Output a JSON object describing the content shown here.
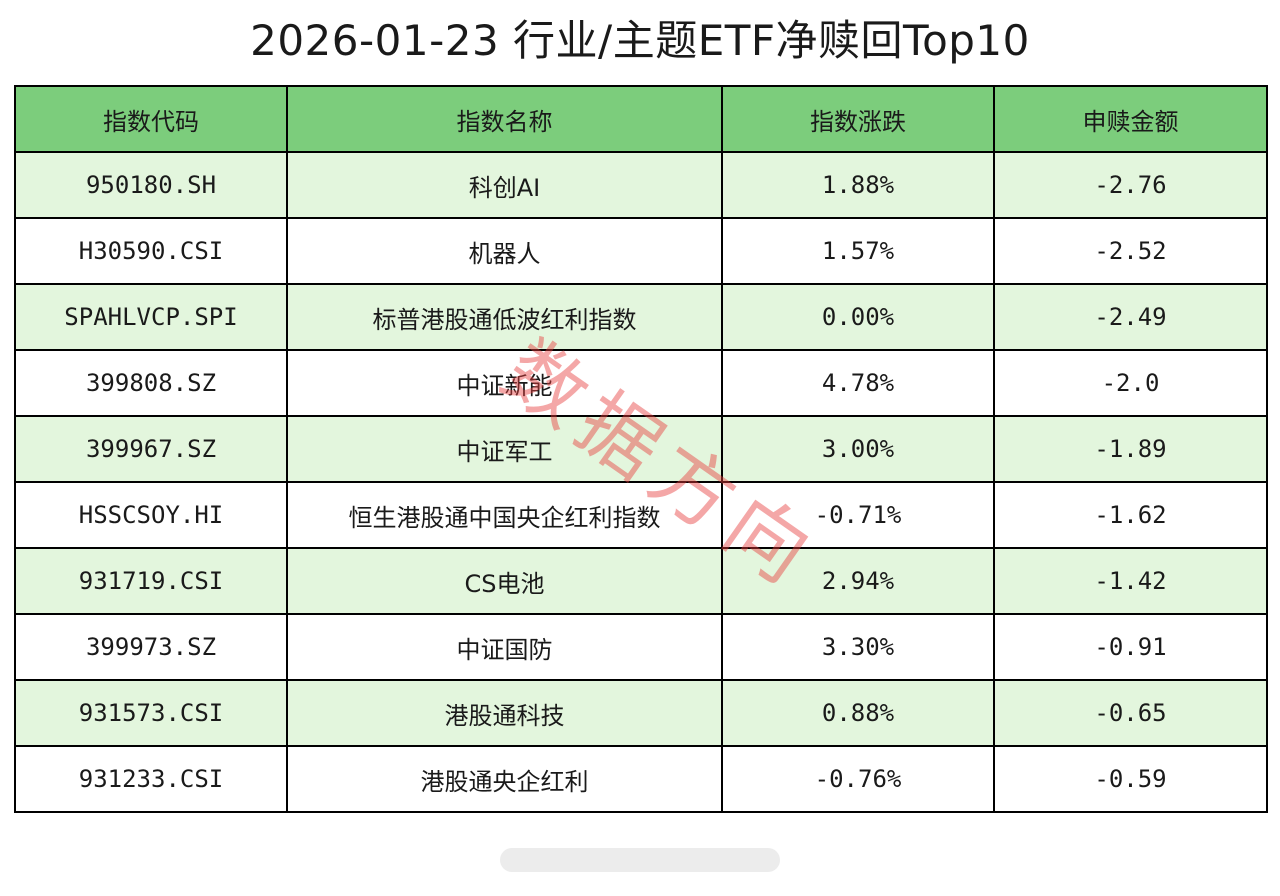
{
  "page": {
    "title": "2026-01-23 行业/主题ETF净赎回Top10"
  },
  "table": {
    "headers": [
      "指数代码",
      "指数名称",
      "指数涨跌",
      "申赎金额"
    ],
    "rows": [
      {
        "code": "950180.SH",
        "name": "科创AI",
        "change": "1.88%",
        "amount": "-2.76"
      },
      {
        "code": "H30590.CSI",
        "name": "机器人",
        "change": "1.57%",
        "amount": "-2.52"
      },
      {
        "code": "SPAHLVCP.SPI",
        "name": "标普港股通低波红利指数",
        "change": "0.00%",
        "amount": "-2.49"
      },
      {
        "code": "399808.SZ",
        "name": "中证新能",
        "change": "4.78%",
        "amount": "-2.0"
      },
      {
        "code": "399967.SZ",
        "name": "中证军工",
        "change": "3.00%",
        "amount": "-1.89"
      },
      {
        "code": "HSSCSOY.HI",
        "name": "恒生港股通中国央企红利指数",
        "change": "-0.71%",
        "amount": "-1.62"
      },
      {
        "code": "931719.CSI",
        "name": "CS电池",
        "change": "2.94%",
        "amount": "-1.42"
      },
      {
        "code": "399973.SZ",
        "name": "中证国防",
        "change": "3.30%",
        "amount": "-0.91"
      },
      {
        "code": "931573.CSI",
        "name": "港股通科技",
        "change": "0.88%",
        "amount": "-0.65"
      },
      {
        "code": "931233.CSI",
        "name": "港股通央企红利",
        "change": "-0.76%",
        "amount": "-0.59"
      }
    ]
  },
  "watermark": {
    "text": "数据方向"
  },
  "colors": {
    "header_bg": "#7ccd7c",
    "row_alt_bg": "#e3f6dd",
    "watermark": "#e63c3c"
  }
}
